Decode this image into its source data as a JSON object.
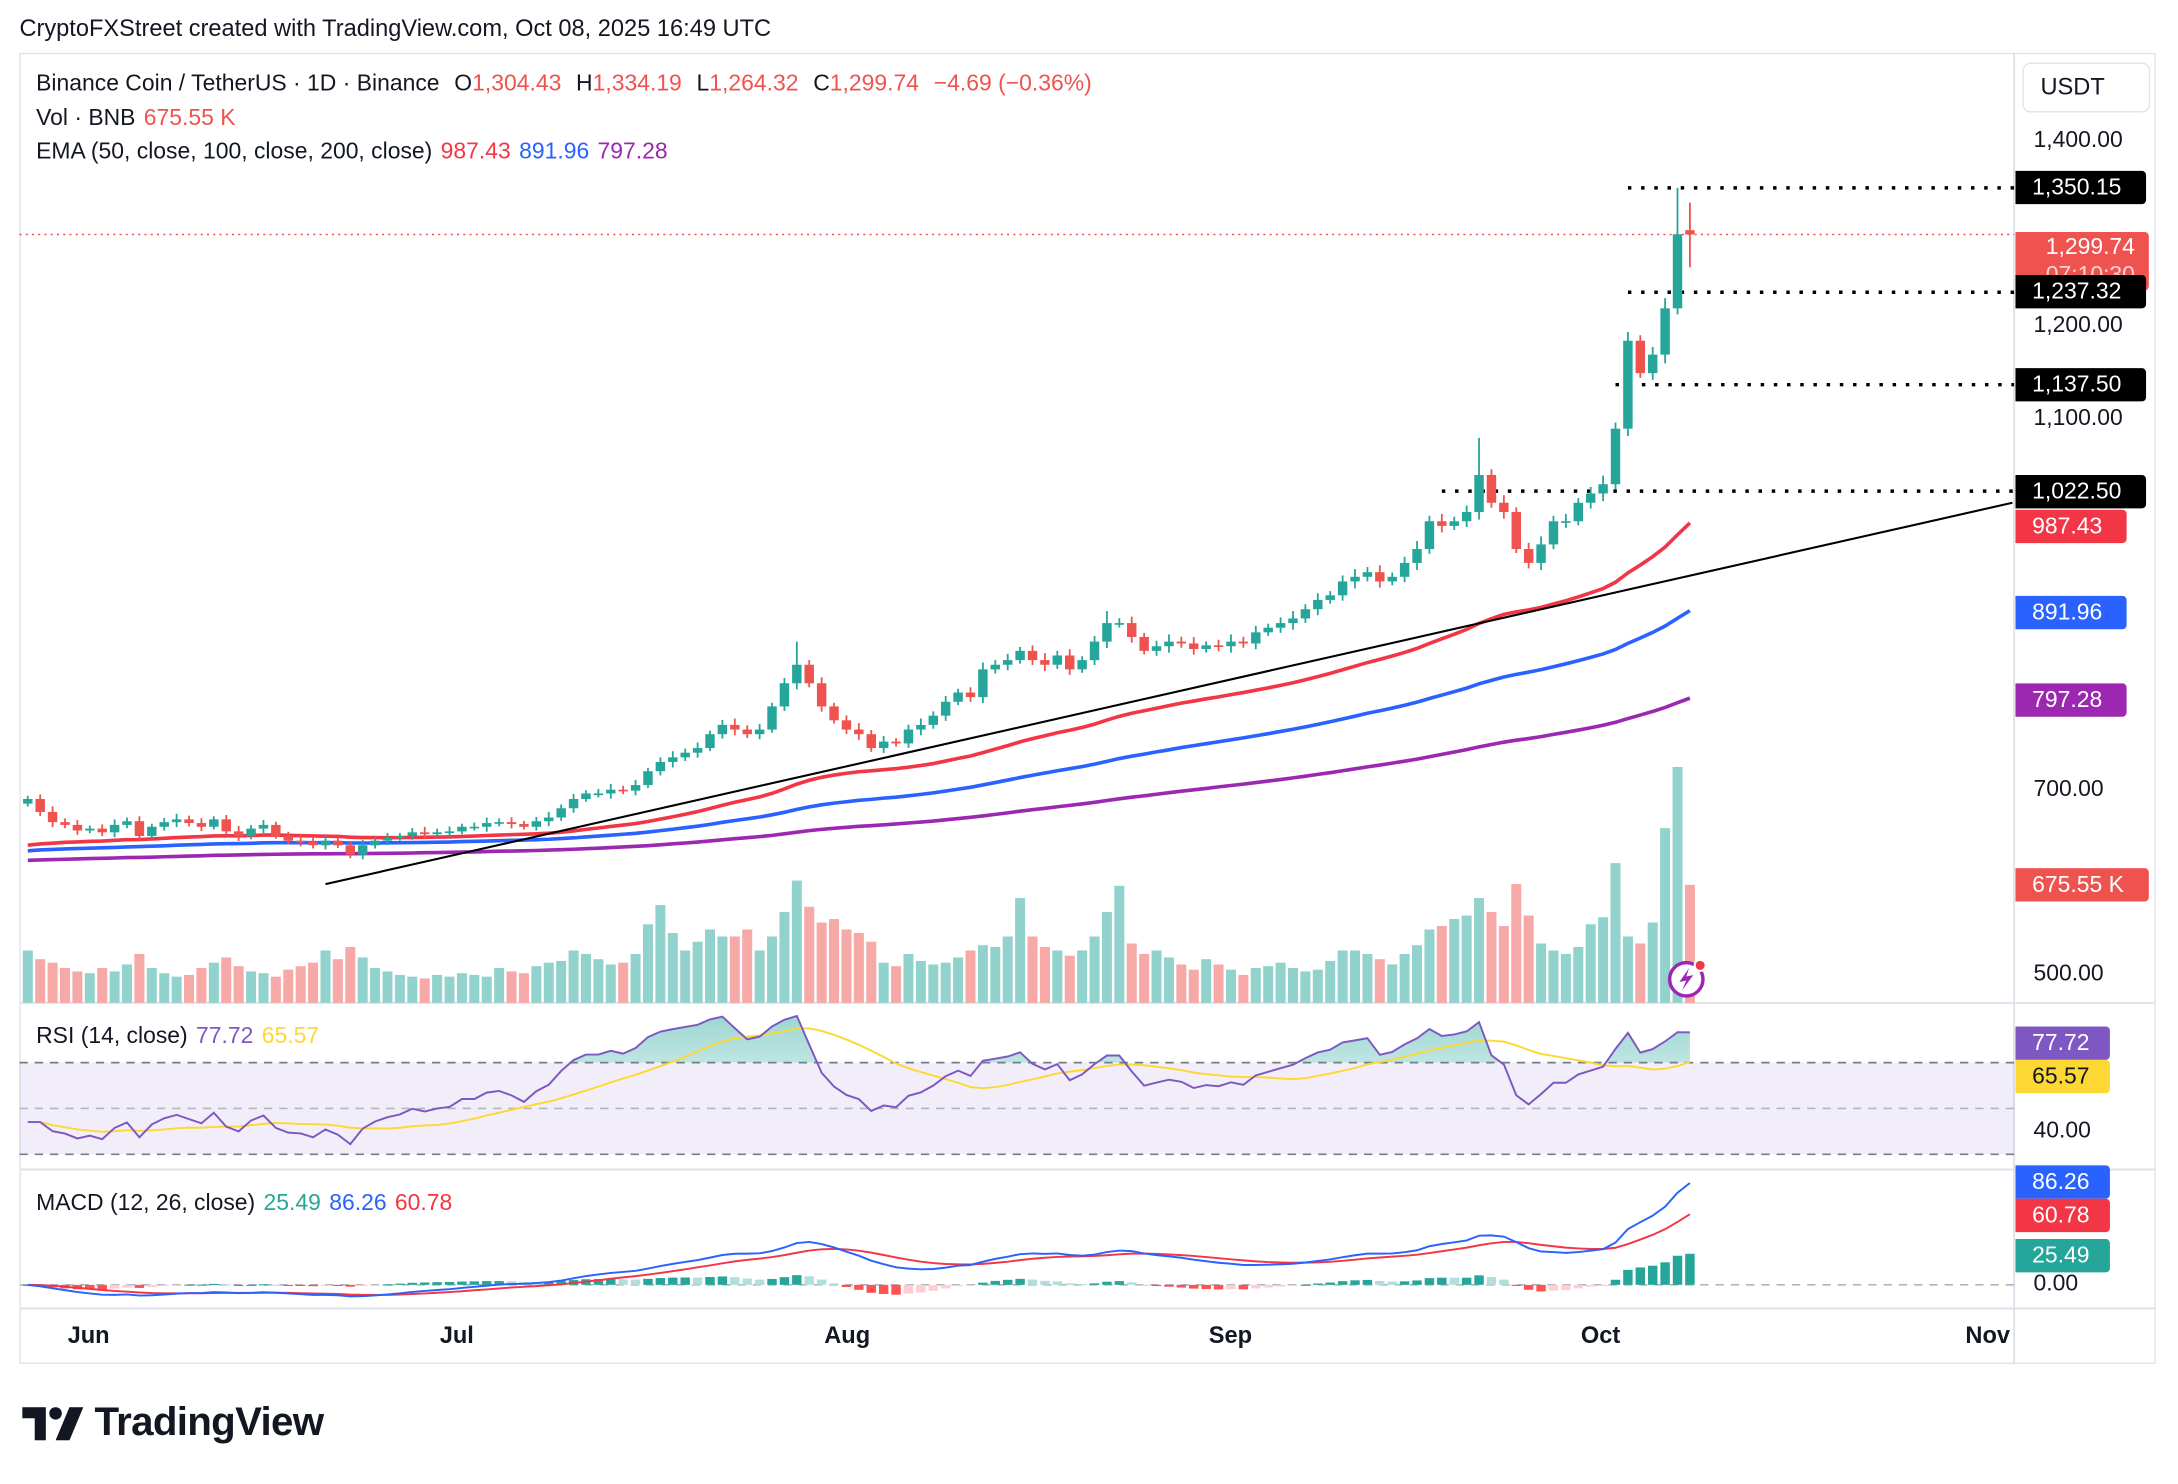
{
  "header": "CryptoFXStreet created with TradingView.com, Oct 08, 2025 16:49 UTC",
  "legend": {
    "symbol": "Binance Coin / TetherUS · 1D · Binance",
    "o_label": "O",
    "o": "1,304.43",
    "h_label": "H",
    "h": "1,334.19",
    "l_label": "L",
    "l": "1,264.32",
    "c_label": "C",
    "c": "1,299.74",
    "change": "−4.69 (−0.36%)",
    "vol_label": "Vol · BNB",
    "vol": "675.55 K",
    "ema_label": "EMA (50, close, 100, close, 200, close)",
    "ema50": "987.43",
    "ema100": "891.96",
    "ema200": "797.28",
    "rsi_label": "RSI (14, close)",
    "rsi": "77.72",
    "rsi_ma": "65.57",
    "macd_label": "MACD (12, 26, close)",
    "macd_hist": "25.49",
    "macd": "86.26",
    "macd_signal": "60.78"
  },
  "price_axis": {
    "currency": "USDT",
    "ticks": [
      {
        "label": "1,400.00",
        "value": 1400
      },
      {
        "label": "1,200.00",
        "value": 1200
      },
      {
        "label": "1,100.00",
        "value": 1100
      },
      {
        "label": "700.00",
        "value": 700
      },
      {
        "label": "500.00",
        "value": 500
      }
    ],
    "rsi_tick": {
      "label": "40.00",
      "value": 40
    },
    "macd_tick": {
      "label": "0.00",
      "value": 0
    }
  },
  "tags": {
    "level_1350": {
      "label": "1,350.15",
      "value": 1350.15
    },
    "last_price": {
      "label": "1,299.74",
      "value": 1299.74,
      "countdown": "07:10:30"
    },
    "level_1237": {
      "label": "1,237.32",
      "value": 1237.32
    },
    "level_1137": {
      "label": "1,137.50",
      "value": 1137.5
    },
    "level_1022": {
      "label": "1,022.50",
      "value": 1022.5
    },
    "ema50": {
      "label": "987.43",
      "value": 987.43
    },
    "ema100": {
      "label": "891.96",
      "value": 891.96
    },
    "ema200": {
      "label": "797.28",
      "value": 797.28
    },
    "volume": {
      "label": "675.55 K",
      "value": 675.55
    },
    "rsi": {
      "label": "77.72",
      "value": 77.72
    },
    "rsi_ma": {
      "label": "65.57",
      "value": 65.57
    },
    "macd": {
      "label": "86.26",
      "value": 86.26
    },
    "macd_signal": {
      "label": "60.78",
      "value": 60.78
    },
    "macd_hist": {
      "label": "25.49",
      "value": 25.49
    }
  },
  "time_axis": [
    {
      "label": "Jun",
      "date": "2025-06-01"
    },
    {
      "label": "Jul",
      "date": "2025-07-01"
    },
    {
      "label": "Aug",
      "date": "2025-08-01"
    },
    {
      "label": "Sep",
      "date": "2025-09-01"
    },
    {
      "label": "Oct",
      "date": "2025-10-01"
    },
    {
      "label": "Nov",
      "date": "2025-11-01"
    }
  ],
  "logo_text": "TradingView",
  "colors": {
    "up": "#26a69a",
    "down": "#ef5350",
    "vol_up": "#92d2cc",
    "vol_down": "#f7a9a7",
    "ema50": "#f23645",
    "ema100": "#2962ff",
    "ema200": "#9c27b0",
    "rsi": "#7e57c2",
    "rsi_ma": "#fdd835",
    "macd": "#2962ff",
    "macd_signal": "#f23645",
    "level_tag": "#000000",
    "last_price": "#ef5350"
  },
  "chart_data": {
    "type": "candlestick",
    "interval": "1D",
    "date_range": [
      "2025-05-27",
      "2025-10-08"
    ],
    "ylim": [
      450,
      1450
    ],
    "close": [
      690,
      676,
      665,
      662,
      656,
      658,
      654,
      662,
      666,
      650,
      660,
      665,
      668,
      664,
      660,
      668,
      655,
      650,
      658,
      662,
      650,
      645,
      644,
      640,
      645,
      640,
      630,
      640,
      645,
      648,
      650,
      654,
      652,
      654,
      655,
      660,
      660,
      664,
      665,
      663,
      660,
      666,
      670,
      680,
      690,
      696,
      696,
      700,
      699,
      705,
      720,
      730,
      735,
      740,
      745,
      760,
      770,
      765,
      760,
      765,
      790,
      815,
      835,
      815,
      790,
      775,
      765,
      760,
      745,
      752,
      750,
      765,
      770,
      780,
      795,
      805,
      800,
      830,
      835,
      840,
      850,
      840,
      835,
      845,
      830,
      840,
      860,
      880,
      880,
      865,
      850,
      855,
      860,
      858,
      852,
      856,
      855,
      860,
      858,
      870,
      875,
      880,
      885,
      895,
      905,
      910,
      925,
      930,
      935,
      925,
      930,
      945,
      960,
      990,
      985,
      990,
      1000,
      1040,
      1010,
      1000,
      960,
      945,
      965,
      990,
      990,
      1010,
      1020,
      1030,
      1090,
      1185,
      1150,
      1170,
      1220,
      1300,
      1299.74
    ],
    "high_points": {
      "2025-07-28": 860,
      "2025-08-22": 893,
      "2025-09-21": 1080,
      "2025-10-07": 1350.15
    },
    "last_candle": {
      "o": 1304.43,
      "h": 1334.19,
      "l": 1264.32,
      "c": 1299.74
    },
    "volume_k": [
      300,
      250,
      230,
      200,
      180,
      170,
      200,
      180,
      220,
      280,
      200,
      170,
      150,
      160,
      200,
      230,
      260,
      210,
      180,
      170,
      150,
      190,
      210,
      230,
      300,
      250,
      320,
      260,
      200,
      180,
      160,
      150,
      140,
      160,
      150,
      170,
      160,
      150,
      200,
      180,
      170,
      210,
      230,
      240,
      300,
      280,
      250,
      220,
      230,
      280,
      450,
      560,
      400,
      300,
      350,
      420,
      380,
      380,
      420,
      300,
      380,
      520,
      700,
      550,
      460,
      480,
      420,
      400,
      350,
      230,
      210,
      280,
      240,
      220,
      230,
      260,
      300,
      330,
      320,
      380,
      600,
      380,
      320,
      300,
      270,
      300,
      380,
      520,
      670,
      340,
      280,
      300,
      260,
      220,
      190,
      250,
      220,
      190,
      160,
      200,
      210,
      230,
      200,
      180,
      190,
      240,
      300,
      300,
      280,
      250,
      220,
      280,
      330,
      420,
      440,
      480,
      500,
      600,
      520,
      440,
      680,
      500,
      340,
      300,
      280,
      320,
      450,
      490,
      800,
      380,
      340,
      460,
      1000,
      1350,
      675.55
    ],
    "ema_start": {
      "ema50": 638,
      "ema100": 633,
      "ema200": 623
    },
    "trendline": [
      [
        "2025-06-20",
        598
      ],
      [
        "2025-11-03",
        1010
      ]
    ],
    "levels": [
      {
        "value": 1350.15,
        "from": "2025-10-03"
      },
      {
        "value": 1237.32,
        "from": "2025-10-03"
      },
      {
        "value": 1137.5,
        "from": "2025-10-02"
      },
      {
        "value": 1022.5,
        "from": "2025-09-18"
      }
    ],
    "rsi_bands": [
      70,
      50,
      30
    ],
    "macd_zero": 0
  }
}
